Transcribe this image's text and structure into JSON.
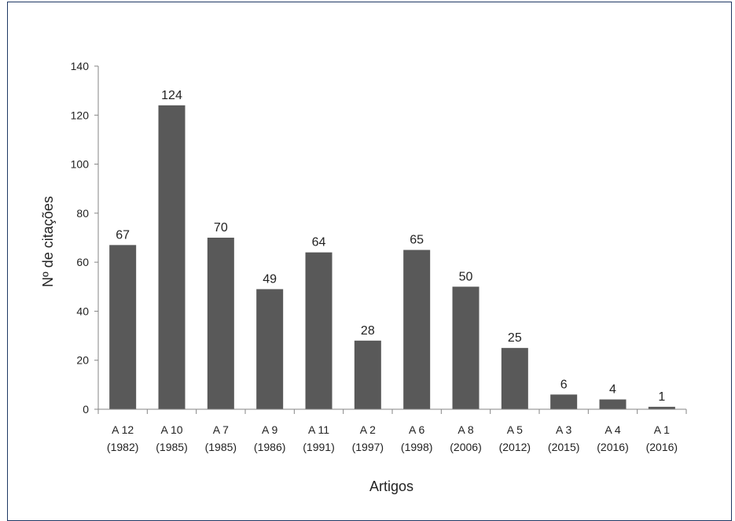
{
  "chart_data": {
    "type": "bar",
    "categories": [
      [
        "A 12",
        "(1982)"
      ],
      [
        "A 10",
        "(1985)"
      ],
      [
        "A 7",
        "(1985)"
      ],
      [
        "A 9",
        "(1986)"
      ],
      [
        "A 11",
        "(1991)"
      ],
      [
        "A 2",
        "(1997)"
      ],
      [
        "A 6",
        "(1998)"
      ],
      [
        "A 8",
        "(2006)"
      ],
      [
        "A 5",
        "(2012)"
      ],
      [
        "A 3",
        "(2015)"
      ],
      [
        "A 4",
        "(2016)"
      ],
      [
        "A 1",
        "(2016)"
      ]
    ],
    "values": [
      67,
      124,
      70,
      49,
      64,
      28,
      65,
      50,
      25,
      6,
      4,
      1
    ],
    "xlabel": "Artigos",
    "ylabel": "Nº de citações",
    "ylim": [
      0,
      140
    ],
    "yticks": [
      0,
      20,
      40,
      60,
      80,
      100,
      120,
      140
    ],
    "data_labels": true,
    "grid": false,
    "bar_color": "#595959",
    "frame_color": "#1f3864"
  }
}
